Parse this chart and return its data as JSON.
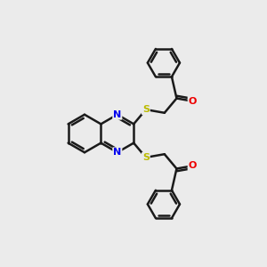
{
  "background_color": "#ebebeb",
  "bond_color": "#1a1a1a",
  "bond_width": 1.8,
  "N_color": "#0000ee",
  "S_color": "#bbbb00",
  "O_color": "#ee0000",
  "font_size_atom": 8,
  "fig_width": 3.0,
  "fig_height": 3.0,
  "dpi": 100,
  "BL": 0.85,
  "xlim": [
    0,
    12
  ],
  "ylim": [
    0,
    12
  ]
}
